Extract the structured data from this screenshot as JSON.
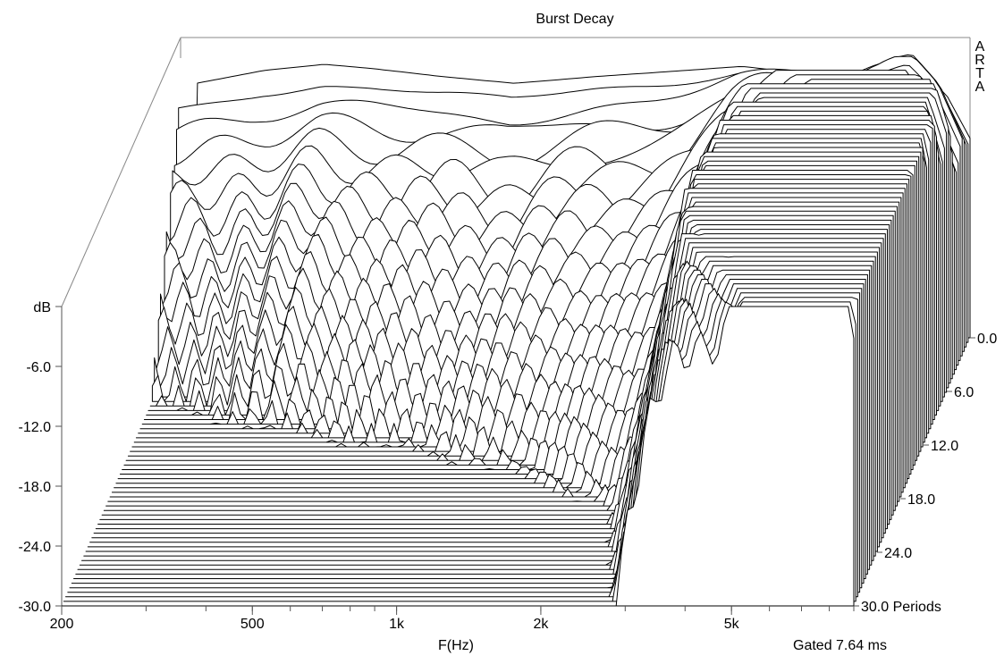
{
  "chart_data": {
    "type": "waterfall",
    "title": "Burst Decay",
    "watermark": "ARTA",
    "xlabel": "F(Hz)",
    "ylabel": "dB",
    "zlabel": "Periods",
    "footer": "Gated 7.64 ms",
    "x_scale": "log",
    "xlim": [
      200,
      9000
    ],
    "ylim": [
      -30,
      0
    ],
    "zlim": [
      0,
      30
    ],
    "x_ticks": [
      {
        "value": 200,
        "label": "200"
      },
      {
        "value": 500,
        "label": "500"
      },
      {
        "value": 1000,
        "label": "1k"
      },
      {
        "value": 2000,
        "label": "2k"
      },
      {
        "value": 5000,
        "label": "5k"
      }
    ],
    "y_ticks": [
      "dB",
      "-6.0",
      "-12.0",
      "-18.0",
      "-24.0",
      "-30.0"
    ],
    "z_ticks": [
      "0.0",
      "6.0",
      "12.0",
      "18.0",
      "24.0",
      "30.0 Periods"
    ],
    "grid": false,
    "slices": 60,
    "series": [
      {
        "periods": 0,
        "frequency_hz": [
          200,
          300,
          400,
          500,
          700,
          1000,
          1500,
          2000,
          3000,
          4000,
          5000,
          6000,
          7000,
          8000,
          9000
        ],
        "level_db": [
          -4.8,
          -3.2,
          -2.6,
          -3.0,
          -3.8,
          -4.5,
          -3.8,
          -3.4,
          -2.8,
          -3.5,
          -6.0,
          -5.0,
          -3.5,
          -5.5,
          -10.0
        ]
      }
    ]
  }
}
